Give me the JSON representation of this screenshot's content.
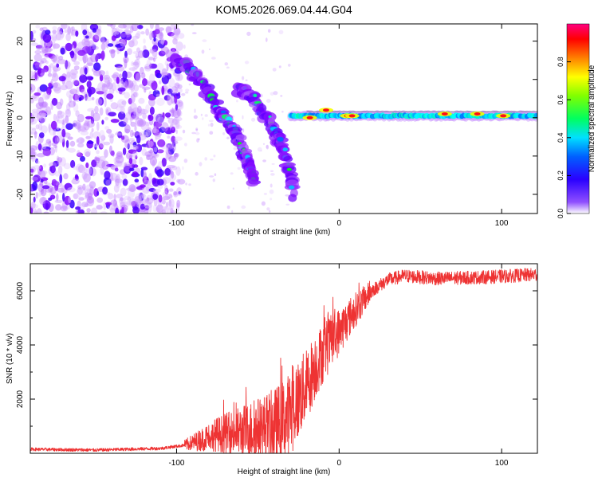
{
  "title": "KOM5.2026.069.04.44.G04",
  "chart_data": [
    {
      "type": "heatmap",
      "name": "spectrogram",
      "xlabel": "Height of straight line (km)",
      "ylabel": "Frequency (Hz)",
      "xlim": [
        -190,
        122
      ],
      "ylim": [
        -25,
        24.5
      ],
      "xticks": [
        -100,
        0,
        100
      ],
      "yticks": [
        -20,
        -10,
        0,
        10,
        20
      ],
      "colorbar": {
        "label": "Normalized spectral amplitude",
        "range": [
          0,
          1
        ],
        "ticks": [
          0.0,
          0.2,
          0.4,
          0.6,
          0.8
        ],
        "tick_labels": [
          "0.0",
          "0.2",
          "0.4",
          "0.6",
          "0.8"
        ],
        "colormap": [
          "#ffffff",
          "#7f00ff",
          "#0000ff",
          "#00ffff",
          "#00ff00",
          "#ffff00",
          "#ff7f00",
          "#ff0000",
          "#ff007f"
        ]
      },
      "features": {
        "noise_region_x": [
          -190,
          -105
        ],
        "main_arc": [
          [
            -102,
            15
          ],
          [
            -92,
            13
          ],
          [
            -84,
            9
          ],
          [
            -78,
            5
          ],
          [
            -72,
            1
          ],
          [
            -66,
            -3
          ],
          [
            -62,
            -5
          ],
          [
            -58,
            -10
          ],
          [
            -55,
            -13
          ],
          [
            -52,
            -17
          ]
        ],
        "second_arc": [
          [
            -62,
            8
          ],
          [
            -56,
            6
          ],
          [
            -50,
            3
          ],
          [
            -44,
            0
          ],
          [
            -40,
            -3
          ],
          [
            -37,
            -6
          ],
          [
            -34,
            -9
          ],
          [
            -30,
            -14
          ],
          [
            -28,
            -20
          ]
        ],
        "steady_line": {
          "x_start": -30,
          "x_end": 122,
          "freq": 0.5
        },
        "hot_spots": [
          [
            -18,
            0
          ],
          [
            -8,
            2
          ],
          [
            5,
            0.5
          ],
          [
            8,
            0.5
          ],
          [
            65,
            1
          ],
          [
            85,
            1
          ],
          [
            101,
            0.5
          ]
        ]
      }
    },
    {
      "type": "line",
      "name": "snr",
      "xlabel": "Height of straight line (km)",
      "ylabel": "SNR (10 * v/v)",
      "xlim": [
        -190,
        122
      ],
      "ylim": [
        0,
        7000
      ],
      "xticks": [
        -100,
        0,
        100
      ],
      "yticks": [
        2000,
        4000,
        6000
      ],
      "color": "#ee3333",
      "profile": [
        [
          -190,
          150
        ],
        [
          -150,
          120
        ],
        [
          -110,
          180
        ],
        [
          -95,
          300
        ],
        [
          -85,
          500
        ],
        [
          -75,
          700
        ],
        [
          -60,
          800
        ],
        [
          -50,
          900
        ],
        [
          -40,
          1000
        ],
        [
          -32,
          1300
        ],
        [
          -25,
          2000
        ],
        [
          -20,
          2500
        ],
        [
          -15,
          3200
        ],
        [
          -10,
          3700
        ],
        [
          -5,
          4100
        ],
        [
          0,
          4500
        ],
        [
          10,
          5300
        ],
        [
          20,
          6000
        ],
        [
          30,
          6400
        ],
        [
          40,
          6550
        ],
        [
          60,
          6450
        ],
        [
          90,
          6500
        ],
        [
          122,
          6600
        ]
      ]
    }
  ]
}
